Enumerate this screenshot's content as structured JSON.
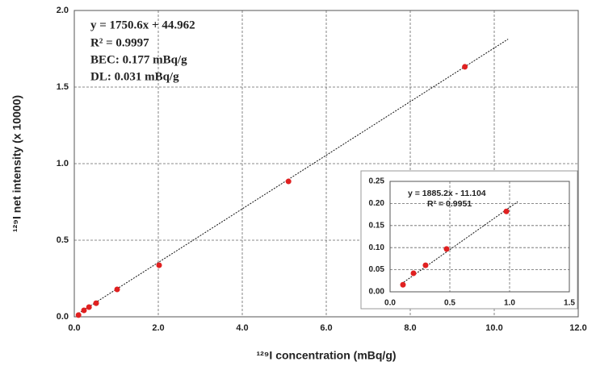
{
  "chart_data": [
    {
      "type": "scatter",
      "x_label": "¹²⁹I concentration (mBq/g)",
      "y_label": "¹²⁹I net intensity (x 10000)",
      "x": [
        0.1,
        0.23,
        0.35,
        0.52,
        1.02,
        2.02,
        5.1,
        9.3
      ],
      "values": [
        0.011,
        0.042,
        0.063,
        0.089,
        0.179,
        0.337,
        0.884,
        1.632
      ],
      "color": "#e02020",
      "fit": {
        "x": [
          0.1,
          10.33
        ],
        "y": [
          0.022,
          1.813
        ]
      },
      "xlim": [
        0,
        12
      ],
      "ylim": [
        0,
        2
      ],
      "xticks": [
        {
          "value": 0,
          "label": "0.0"
        },
        {
          "value": 2,
          "label": "2.0"
        },
        {
          "value": 4,
          "label": "4.0"
        },
        {
          "value": 6,
          "label": "6.0"
        },
        {
          "value": 8,
          "label": "8.0"
        },
        {
          "value": 10,
          "label": "10.0"
        },
        {
          "value": 12,
          "label": "12.0"
        }
      ],
      "yticks": [
        {
          "value": 0,
          "label": "0.0"
        },
        0.5,
        {
          "value": 1,
          "label": "1.0"
        },
        1.5,
        {
          "value": 2,
          "label": "2.0"
        }
      ],
      "grid": true,
      "annotations": [
        "y = 1750.6x + 44.962",
        "R² = 0.9997",
        "BEC: 0.177 mBq/g",
        "DL: 0.031 mBq/g"
      ]
    },
    {
      "type": "scatter",
      "x": [
        0.108,
        0.196,
        0.297,
        0.473,
        0.973
      ],
      "values": [
        0.016,
        0.042,
        0.06,
        0.097,
        0.182
      ],
      "color": "#e02020",
      "fit": {
        "x": [
          0.095,
          1.068
        ],
        "y": [
          0.018,
          0.204
        ]
      },
      "xlim": [
        0,
        1.5
      ],
      "ylim": [
        0,
        0.25
      ],
      "xticks": [
        {
          "value": 0,
          "label": "0.0"
        },
        0.5,
        {
          "value": 1,
          "label": "1.0"
        },
        1.5
      ],
      "yticks": [
        {
          "value": 0,
          "label": "0.00"
        },
        0.05,
        {
          "value": 0.1,
          "label": "0.10"
        },
        0.15,
        {
          "value": 0.2,
          "label": "0.20"
        },
        0.25
      ],
      "grid": true,
      "annotations": [
        "y = 1885.2x - 11.104",
        "R² = 0.9951"
      ]
    }
  ]
}
